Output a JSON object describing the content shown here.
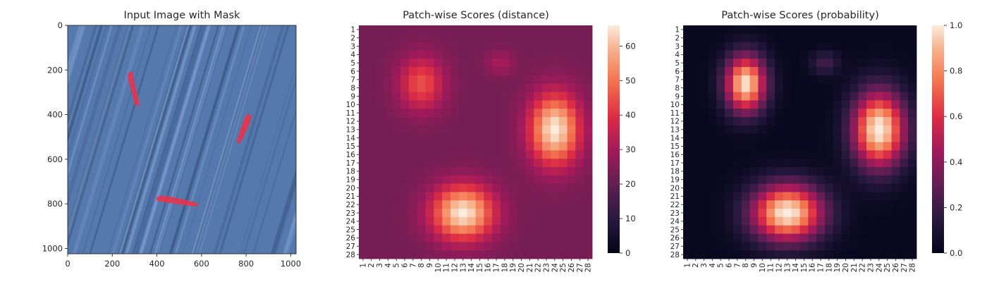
{
  "chart_data": [
    {
      "type": "image",
      "title": "Input Image with Mask",
      "xticks": [
        0,
        200,
        400,
        600,
        800,
        1000
      ],
      "yticks": [
        0,
        200,
        400,
        600,
        800,
        1000
      ],
      "xlim": [
        0,
        1024
      ],
      "ylim": [
        1024,
        0
      ],
      "colors": {
        "background": "#5578ad",
        "mask": "#e8334d"
      },
      "mask_regions": [
        {
          "points": [
            [
              270,
              215
            ],
            [
              290,
              205
            ],
            [
              298,
              250
            ],
            [
              322,
              350
            ],
            [
              312,
              365
            ],
            [
              300,
              350
            ],
            [
              282,
              280
            ],
            [
              270,
              240
            ]
          ]
        },
        {
          "points": [
            [
              790,
              420
            ],
            [
              808,
              395
            ],
            [
              826,
              408
            ],
            [
              812,
              450
            ],
            [
              784,
              510
            ],
            [
              768,
              532
            ],
            [
              758,
              520
            ],
            [
              770,
              480
            ]
          ]
        },
        {
          "points": [
            [
              398,
              772
            ],
            [
              418,
              762
            ],
            [
              470,
              770
            ],
            [
              540,
              785
            ],
            [
              588,
              800
            ],
            [
              582,
              812
            ],
            [
              540,
              808
            ],
            [
              470,
              798
            ],
            [
              418,
              790
            ],
            [
              398,
              784
            ]
          ]
        }
      ]
    },
    {
      "type": "heatmap",
      "title": "Patch-wise Scores (distance)",
      "rows": 28,
      "cols": 28,
      "categories": [
        "1",
        "2",
        "3",
        "4",
        "5",
        "6",
        "7",
        "8",
        "9",
        "10",
        "11",
        "12",
        "13",
        "14",
        "15",
        "16",
        "17",
        "18",
        "19",
        "20",
        "21",
        "22",
        "23",
        "24",
        "25",
        "26",
        "27",
        "28"
      ],
      "vmin": 0,
      "vmax": 66,
      "colorbar_ticks": [
        0,
        10,
        20,
        30,
        40,
        50,
        60
      ],
      "colormap": "rocket",
      "base": 23,
      "blobs": [
        {
          "row": 7.5,
          "col": 8,
          "sx": 1.9,
          "sy": 2.3,
          "amp": 22
        },
        {
          "row": 13,
          "col": 24,
          "sx": 2.1,
          "sy": 3.0,
          "amp": 43
        },
        {
          "row": 23,
          "col": 13,
          "sx": 2.6,
          "sy": 2.3,
          "amp": 43
        },
        {
          "row": 5,
          "col": 17.5,
          "sx": 1.2,
          "sy": 1.0,
          "amp": 8
        }
      ]
    },
    {
      "type": "heatmap",
      "title": "Patch-wise Scores (probability)",
      "rows": 28,
      "cols": 28,
      "categories": [
        "1",
        "2",
        "3",
        "4",
        "5",
        "6",
        "7",
        "8",
        "9",
        "10",
        "11",
        "12",
        "13",
        "14",
        "15",
        "16",
        "17",
        "18",
        "19",
        "20",
        "21",
        "22",
        "23",
        "24",
        "25",
        "26",
        "27",
        "28"
      ],
      "vmin": 0.0,
      "vmax": 1.0,
      "colorbar_ticks": [
        "0.0",
        "0.2",
        "0.4",
        "0.6",
        "0.8",
        "1.0"
      ],
      "colormap": "rocket",
      "base": 0.02,
      "blobs": [
        {
          "row": 7.5,
          "col": 8,
          "sx": 1.7,
          "sy": 2.4,
          "amp": 0.97
        },
        {
          "row": 13,
          "col": 24,
          "sx": 2.2,
          "sy": 3.2,
          "amp": 1.0
        },
        {
          "row": 23,
          "col": 13,
          "sx": 3.0,
          "sy": 2.4,
          "amp": 1.0
        },
        {
          "row": 5,
          "col": 17.5,
          "sx": 1.2,
          "sy": 1.0,
          "amp": 0.2
        }
      ]
    }
  ]
}
